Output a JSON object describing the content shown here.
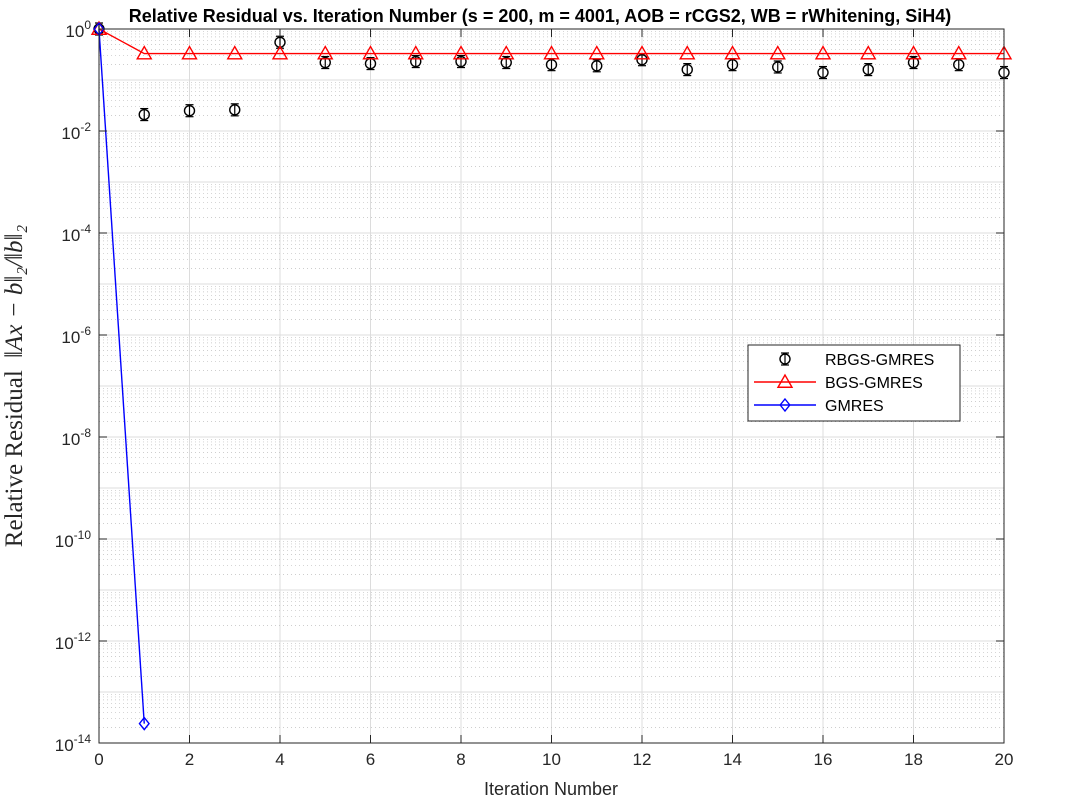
{
  "chart_data": {
    "type": "line",
    "title": "Relative Residual vs. Iteration Number (s = 200, m = 4001, AOB = rCGS2, WB = rWhitening, SiH4)",
    "xlabel": "Iteration Number",
    "ylabel_text": "Relative Residual",
    "ylabel_math": "‖Ax − b‖₂/‖b‖₂",
    "xlim": [
      0,
      20
    ],
    "ylim": [
      1e-14,
      1
    ],
    "yscale": "log",
    "grid": true,
    "minor_grid": true,
    "legend_position": "center-right",
    "x_ticks": [
      "0",
      "2",
      "4",
      "6",
      "8",
      "10",
      "12",
      "14",
      "16",
      "18",
      "20"
    ],
    "y_ticks": [
      {
        "base": "10",
        "exp": "0"
      },
      {
        "base": "10",
        "exp": "-2"
      },
      {
        "base": "10",
        "exp": "-4"
      },
      {
        "base": "10",
        "exp": "-6"
      },
      {
        "base": "10",
        "exp": "-8"
      },
      {
        "base": "10",
        "exp": "-10"
      },
      {
        "base": "10",
        "exp": "-12"
      },
      {
        "base": "10",
        "exp": "-14"
      }
    ],
    "series": [
      {
        "name": "RBGS-GMRES",
        "color": "#000000",
        "marker": "circle-errorbar",
        "line": false,
        "x": [
          0,
          1,
          2,
          3,
          4,
          5,
          6,
          7,
          8,
          9,
          10,
          11,
          12,
          13,
          14,
          15,
          16,
          17,
          18,
          19,
          20
        ],
        "y": [
          1.0,
          0.021,
          0.025,
          0.026,
          0.55,
          0.22,
          0.21,
          0.23,
          0.23,
          0.22,
          0.2,
          0.19,
          0.25,
          0.16,
          0.2,
          0.18,
          0.14,
          0.16,
          0.22,
          0.2,
          0.14
        ]
      },
      {
        "name": "BGS-GMRES",
        "color": "#ff0000",
        "marker": "triangle",
        "line": true,
        "x": [
          0,
          1,
          2,
          3,
          4,
          5,
          6,
          7,
          8,
          9,
          10,
          11,
          12,
          13,
          14,
          15,
          16,
          17,
          18,
          19,
          20
        ],
        "y": [
          1.0,
          0.33,
          0.33,
          0.33,
          0.33,
          0.33,
          0.33,
          0.33,
          0.33,
          0.33,
          0.33,
          0.33,
          0.33,
          0.33,
          0.33,
          0.33,
          0.33,
          0.33,
          0.33,
          0.33,
          0.33
        ]
      },
      {
        "name": "GMRES",
        "color": "#0000ff",
        "marker": "diamond",
        "line": true,
        "x": [
          0,
          1
        ],
        "y": [
          1.0,
          2.4e-14
        ]
      }
    ]
  }
}
